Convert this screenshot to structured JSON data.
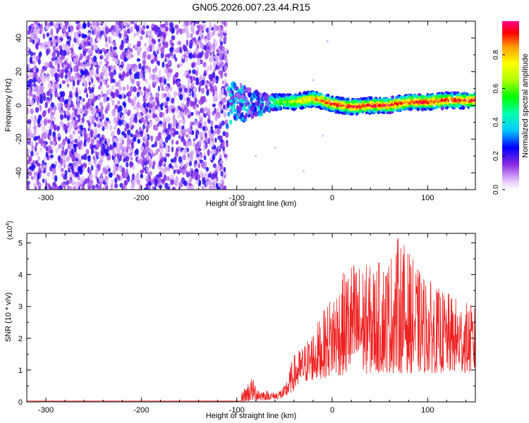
{
  "title": "GN05.2026.007.23.44.R15",
  "chart_data": [
    {
      "type": "heatmap",
      "title": "GN05.2026.007.23.44.R15",
      "xlabel": "Height of straight line (km)",
      "ylabel": "Frequency (Hz)",
      "xlim": [
        -320,
        150
      ],
      "ylim": [
        -50,
        50
      ],
      "xticks": [
        -300,
        -200,
        -100,
        0,
        100
      ],
      "yticks": [
        -40,
        -20,
        0,
        20,
        40
      ],
      "xtick_labels": [
        "-300",
        "-200",
        "-100",
        "0",
        "100"
      ],
      "ytick_labels": [
        "-40",
        "-20",
        "0",
        "20",
        "40"
      ],
      "colorbar": {
        "label": "Normalized spectral amplitude",
        "range": [
          0,
          1
        ],
        "ticks": [
          0.0,
          0.2,
          0.4,
          0.6,
          0.8
        ],
        "tick_labels": [
          "0.0",
          "0.2",
          "0.4",
          "0.6",
          "0.8"
        ]
      },
      "regions": [
        {
          "name": "noise",
          "x_range": [
            -320,
            -110
          ],
          "y_range": [
            -50,
            50
          ],
          "amplitude": [
            0.05,
            0.25
          ]
        },
        {
          "name": "onset",
          "x_range": [
            -110,
            -65
          ],
          "y_range": [
            -18,
            15
          ],
          "amplitude": [
            0.1,
            0.45
          ]
        },
        {
          "name": "signal",
          "x_range": [
            -65,
            150
          ],
          "y_range": [
            -5,
            6
          ],
          "amplitude": [
            0.3,
            0.95
          ]
        }
      ],
      "signal_center_hz": [
        [
          -65,
          2
        ],
        [
          -40,
          2
        ],
        [
          -20,
          4
        ],
        [
          0,
          1
        ],
        [
          20,
          -1
        ],
        [
          40,
          0
        ],
        [
          60,
          0
        ],
        [
          80,
          2
        ],
        [
          100,
          2
        ],
        [
          120,
          3
        ],
        [
          150,
          3
        ]
      ]
    },
    {
      "type": "line",
      "xlabel": "Height of straight line (km)",
      "ylabel": "SNR (10 * v/v)",
      "yscale_label": "(x10",
      "yscale_exp": "4",
      "yscale_close": ")",
      "xlim": [
        -320,
        150
      ],
      "ylim": [
        0,
        5.3
      ],
      "xticks": [
        -300,
        -200,
        -100,
        0,
        100
      ],
      "yticks": [
        0,
        1,
        2,
        3,
        4,
        5
      ],
      "xtick_labels": [
        "-300",
        "-200",
        "-100",
        "0",
        "100"
      ],
      "ytick_labels": [
        "0",
        "1",
        "2",
        "3",
        "4",
        "5"
      ],
      "color": "#ee2222",
      "envelope": [
        {
          "x": -320,
          "y": 0.02
        },
        {
          "x": -120,
          "y": 0.03
        },
        {
          "x": -100,
          "y": 0.04
        },
        {
          "x": -85,
          "y": 0.8
        },
        {
          "x": -75,
          "y": 0.4
        },
        {
          "x": -60,
          "y": 0.3
        },
        {
          "x": -50,
          "y": 0.5
        },
        {
          "x": -40,
          "y": 1.5
        },
        {
          "x": -30,
          "y": 1.8
        },
        {
          "x": -20,
          "y": 2.3
        },
        {
          "x": -10,
          "y": 2.8
        },
        {
          "x": 0,
          "y": 3.5
        },
        {
          "x": 20,
          "y": 4.5
        },
        {
          "x": 40,
          "y": 4.3
        },
        {
          "x": 60,
          "y": 4.6
        },
        {
          "x": 70,
          "y": 5.3
        },
        {
          "x": 90,
          "y": 4.2
        },
        {
          "x": 110,
          "y": 3.6
        },
        {
          "x": 130,
          "y": 3.3
        },
        {
          "x": 150,
          "y": 3.0
        }
      ],
      "baseline": [
        {
          "x": -320,
          "y": 0.0
        },
        {
          "x": -90,
          "y": 0.0
        },
        {
          "x": -50,
          "y": 0.1
        },
        {
          "x": -30,
          "y": 0.6
        },
        {
          "x": 0,
          "y": 0.8
        },
        {
          "x": 50,
          "y": 0.9
        },
        {
          "x": 100,
          "y": 0.9
        },
        {
          "x": 150,
          "y": 0.9
        }
      ]
    }
  ]
}
